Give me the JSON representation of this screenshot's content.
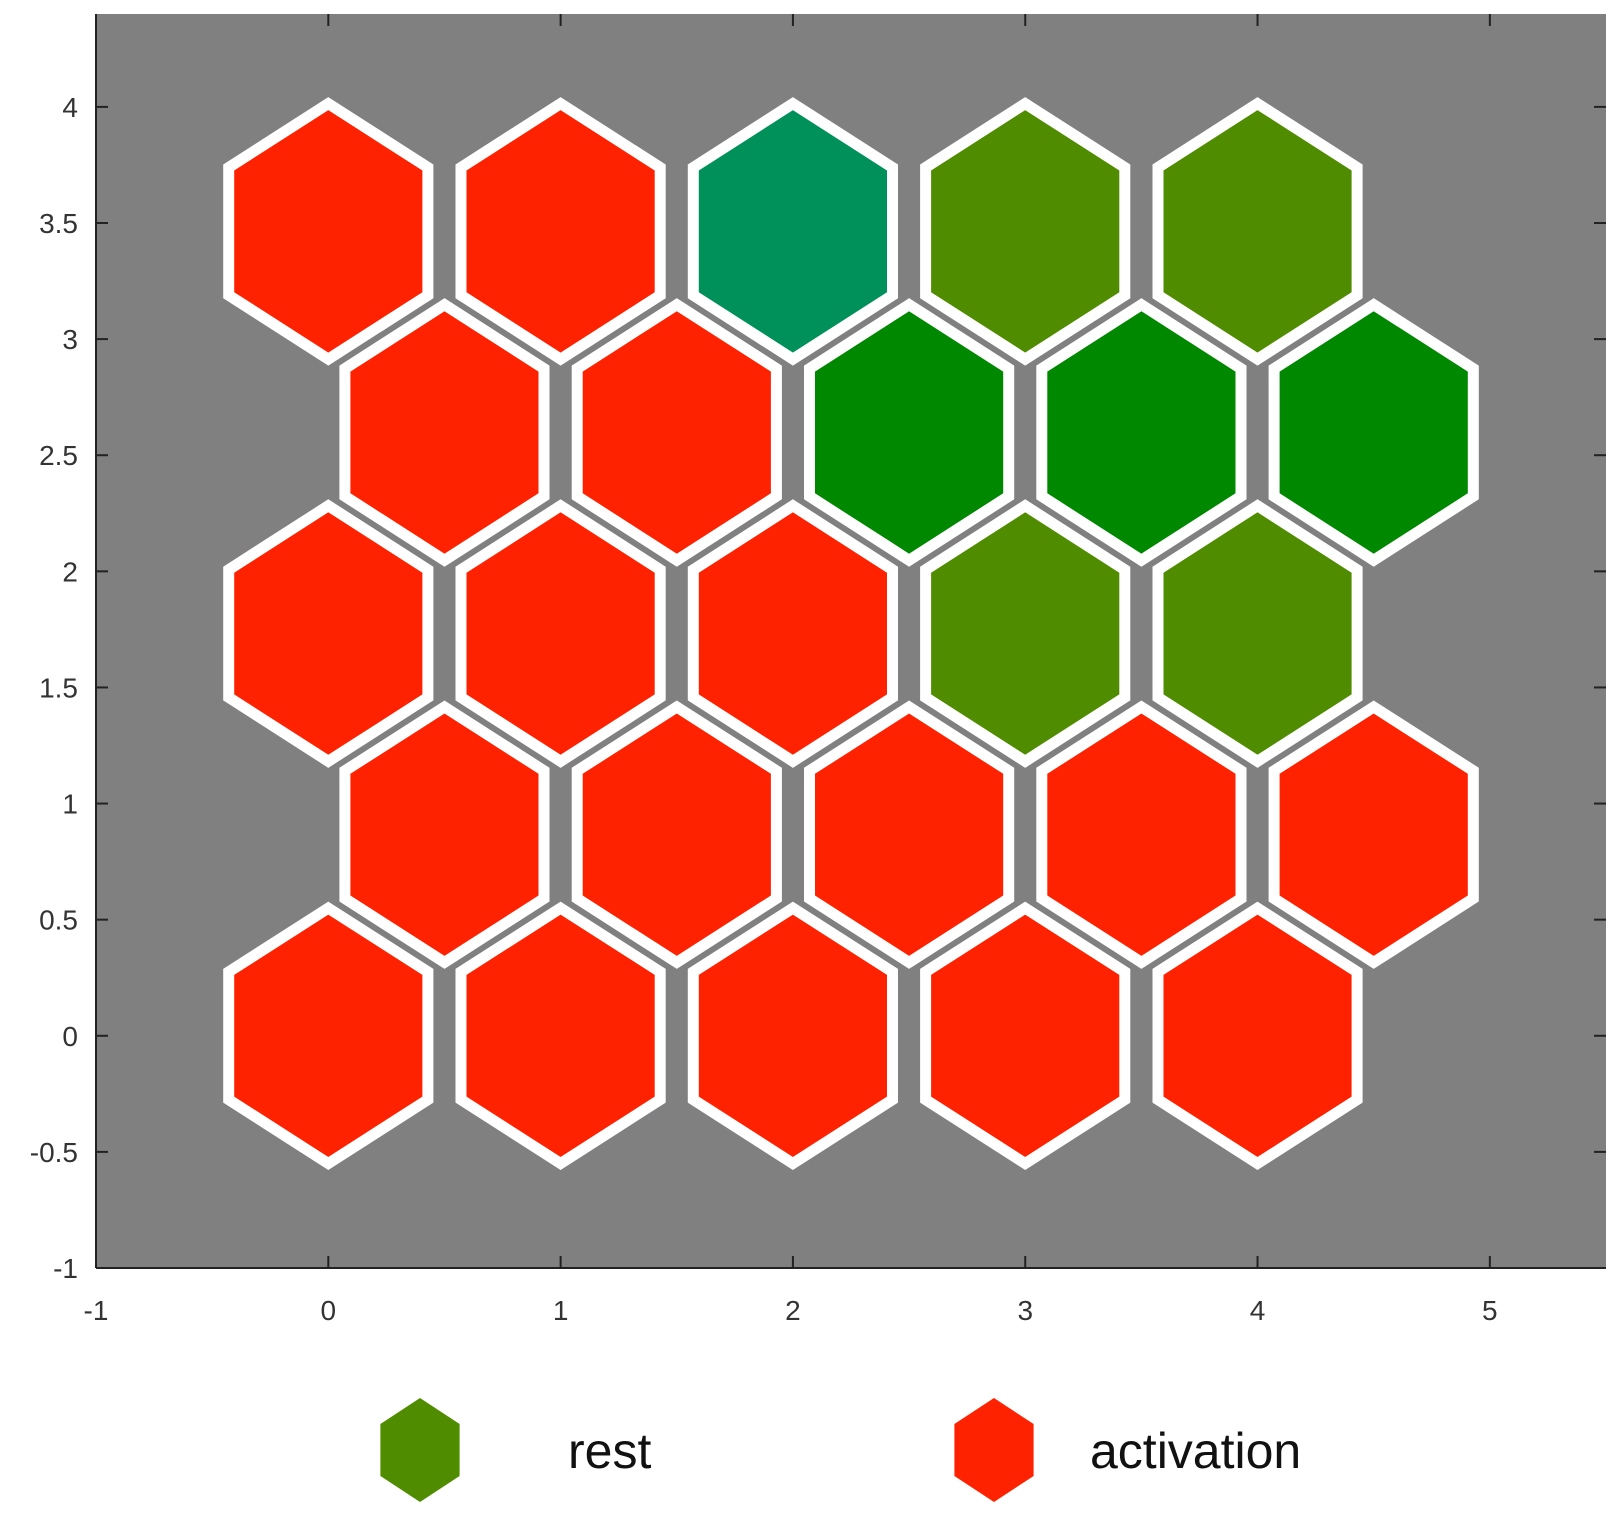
{
  "chart_data": {
    "type": "heatmap",
    "subtype": "hexagonal-som-map",
    "title": "",
    "xlabel": "",
    "ylabel": "",
    "xlim": [
      -1,
      5.5
    ],
    "ylim": [
      -1,
      4.4
    ],
    "xticks": [
      -1,
      0,
      1,
      2,
      3,
      4,
      5
    ],
    "yticks": [
      -1,
      -0.5,
      0,
      0.5,
      1,
      1.5,
      2,
      2.5,
      3,
      3.5,
      4
    ],
    "xtick_labels": [
      "-1",
      "0",
      "1",
      "2",
      "3",
      "4",
      "5"
    ],
    "ytick_labels": [
      "-1",
      "-0.5",
      "0",
      "0.5",
      "1",
      "1.5",
      "2",
      "2.5",
      "3",
      "3.5",
      "4"
    ],
    "grid": false,
    "background_color": "#808080",
    "hex_border_color": "#ffffff",
    "colors": {
      "activation": "#ff2200",
      "rest": "#4f8c00",
      "dark_green": "#008800",
      "teal_green": "#00905a"
    },
    "cells": [
      {
        "x": 0,
        "y": 0,
        "color": "activation"
      },
      {
        "x": 1,
        "y": 0,
        "color": "activation"
      },
      {
        "x": 2,
        "y": 0,
        "color": "activation"
      },
      {
        "x": 3,
        "y": 0,
        "color": "activation"
      },
      {
        "x": 4,
        "y": 0,
        "color": "activation"
      },
      {
        "x": 0.5,
        "y": 0.866,
        "color": "activation"
      },
      {
        "x": 1.5,
        "y": 0.866,
        "color": "activation"
      },
      {
        "x": 2.5,
        "y": 0.866,
        "color": "activation"
      },
      {
        "x": 3.5,
        "y": 0.866,
        "color": "activation"
      },
      {
        "x": 4.5,
        "y": 0.866,
        "color": "activation"
      },
      {
        "x": 0,
        "y": 1.732,
        "color": "activation"
      },
      {
        "x": 1,
        "y": 1.732,
        "color": "activation"
      },
      {
        "x": 2,
        "y": 1.732,
        "color": "activation"
      },
      {
        "x": 3,
        "y": 1.732,
        "color": "rest"
      },
      {
        "x": 4,
        "y": 1.732,
        "color": "rest"
      },
      {
        "x": 0.5,
        "y": 2.598,
        "color": "activation"
      },
      {
        "x": 1.5,
        "y": 2.598,
        "color": "activation"
      },
      {
        "x": 2.5,
        "y": 2.598,
        "color": "dark_green"
      },
      {
        "x": 3.5,
        "y": 2.598,
        "color": "dark_green"
      },
      {
        "x": 4.5,
        "y": 2.598,
        "color": "dark_green"
      },
      {
        "x": 0,
        "y": 3.464,
        "color": "activation"
      },
      {
        "x": 1,
        "y": 3.464,
        "color": "activation"
      },
      {
        "x": 2,
        "y": 3.464,
        "color": "teal_green"
      },
      {
        "x": 3,
        "y": 3.464,
        "color": "rest"
      },
      {
        "x": 4,
        "y": 3.464,
        "color": "rest"
      }
    ],
    "legend": {
      "placement": "bottom",
      "items": [
        {
          "label": "rest",
          "color": "#4f8c00"
        },
        {
          "label": "activation",
          "color": "#ff2200"
        }
      ]
    }
  }
}
